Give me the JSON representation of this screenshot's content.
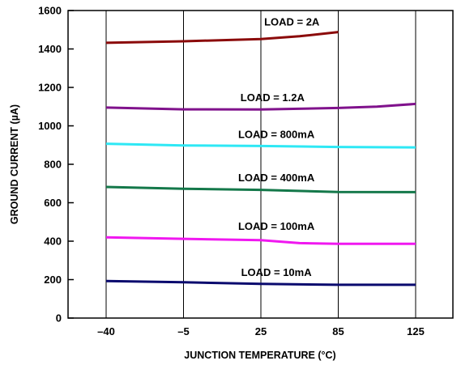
{
  "chart_data": {
    "type": "line",
    "title": "",
    "xlabel": "JUNCTION TEMPERATURE (°C)",
    "ylabel": "GROUND CURRENT (µA)",
    "categories": [
      "–40",
      "–5",
      "25",
      "85",
      "125"
    ],
    "y_ticks": [
      "0",
      "200",
      "400",
      "600",
      "800",
      "1000",
      "1200",
      "1400",
      "1600"
    ],
    "ylim": [
      0,
      1600
    ],
    "grid": "vertical",
    "legend": "inline labels above each curve",
    "series": [
      {
        "name": "LOAD = 2A",
        "color": "#8b0a0a",
        "points": [
          [
            0,
            1432
          ],
          [
            1,
            1440
          ],
          [
            2,
            1452
          ],
          [
            2.5,
            1466
          ],
          [
            3,
            1488
          ]
        ]
      },
      {
        "name": "LOAD = 1.2A",
        "color": "#80128c",
        "points": [
          [
            0,
            1095
          ],
          [
            1,
            1086
          ],
          [
            2,
            1085
          ],
          [
            3,
            1093
          ],
          [
            3.5,
            1100
          ],
          [
            4,
            1114
          ]
        ]
      },
      {
        "name": "LOAD = 800mA",
        "color": "#2ee8f5",
        "points": [
          [
            0,
            907
          ],
          [
            1,
            898
          ],
          [
            2,
            895
          ],
          [
            3,
            890
          ],
          [
            4,
            888
          ]
        ]
      },
      {
        "name": "LOAD = 400mA",
        "color": "#14784a",
        "points": [
          [
            0,
            682
          ],
          [
            1,
            673
          ],
          [
            2,
            667
          ],
          [
            3,
            656
          ],
          [
            4,
            655
          ]
        ]
      },
      {
        "name": "LOAD = 100mA",
        "color": "#f018f0",
        "points": [
          [
            0,
            420
          ],
          [
            1,
            412
          ],
          [
            2,
            405
          ],
          [
            2.5,
            390
          ],
          [
            3,
            386
          ],
          [
            4,
            386
          ]
        ]
      },
      {
        "name": "LOAD = 10mA",
        "color": "#0a0a6e",
        "points": [
          [
            0,
            193
          ],
          [
            1,
            186
          ],
          [
            2,
            178
          ],
          [
            3,
            173
          ],
          [
            4,
            173
          ]
        ]
      }
    ]
  }
}
